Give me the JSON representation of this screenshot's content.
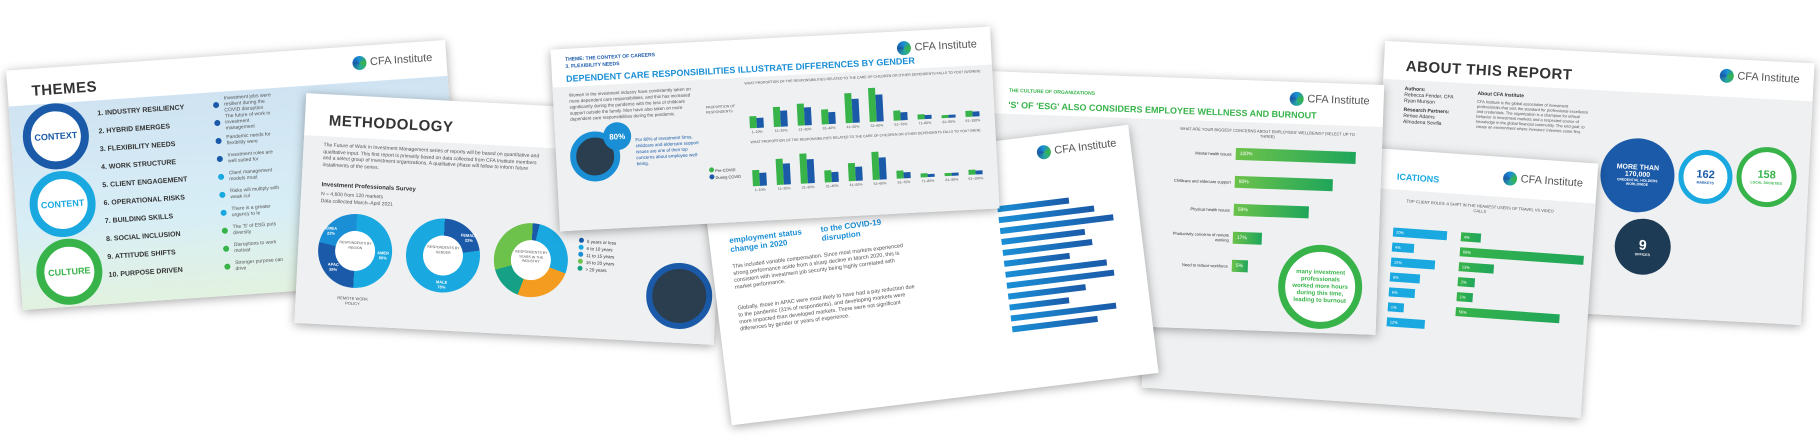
{
  "brand": {
    "logo_text": "CFA Institute",
    "colors": {
      "blue": "#1a5aa8",
      "cyan": "#19a8e0",
      "green": "#37b34a"
    }
  },
  "themes_page": {
    "title": "THEMES",
    "pillars": [
      "CONTEXT",
      "CONTENT",
      "CULTURE"
    ],
    "items": [
      {
        "label": "1. INDUSTRY RESILIENCY",
        "desc": "Investment jobs were resilient during the COVID disruption"
      },
      {
        "label": "2. HYBRID EMERGES",
        "desc": "The future of work in investment management"
      },
      {
        "label": "3. FLEXIBILITY NEEDS",
        "desc": "Pandemic needs for flexibility were"
      },
      {
        "label": "4. WORK STRUCTURE",
        "desc": "Investment roles are well suited for"
      },
      {
        "label": "5. CLIENT ENGAGEMENT",
        "desc": "Client management models must"
      },
      {
        "label": "6. OPERATIONAL RISKS",
        "desc": "Risks will multiply with weak cul"
      },
      {
        "label": "7. BUILDING SKILLS",
        "desc": "There is a greater urgency to le"
      },
      {
        "label": "8. SOCIAL INCLUSION",
        "desc": "The 'S' of ESG puts diversity"
      },
      {
        "label": "9. ATTITUDE SHIFTS",
        "desc": "Disruptions to work motivat"
      },
      {
        "label": "10. PURPOSE DRIVEN",
        "desc": "Stronger purpose can drive"
      }
    ]
  },
  "methodology_page": {
    "title": "METHODOLOGY",
    "intro": "The Future of Work in Investment Management series of reports will be based on quantitative and qualitative input. This first report is primarily based on data collected from CFA Institute members and a select group of investment organizations. A qualitative phase will follow to inform future installments of the series.",
    "survey_title": "Investment Professionals Survey",
    "survey_n": "N = 4,600 from 120 markets",
    "survey_dates": "Data collected March–April 2021",
    "donuts": [
      "RESPONDENTS BY REGION",
      "RESPONDENTS BY GENDER",
      "RESPONDENTS BY YEARS IN THE INDUSTRY"
    ],
    "region": [
      "EMEA 22%",
      "AMER 50%",
      "APAC 28%"
    ],
    "gender": [
      "FEMALE 22%",
      "MALE 78%"
    ],
    "legend": [
      "5 years or less",
      "6 to 10 years",
      "11 to 15 years",
      "16 to 20 years",
      "> 20 years"
    ],
    "footer": "REMOTE WORK POLICY"
  },
  "gender_page": {
    "kicker": "THEME: THE CONTEXT OF CAREERS",
    "subkicker": "3. FLEXIBILITY NEEDS",
    "title": "DEPENDENT CARE RESPONSIBILITIES ILLUSTRATE DIFFERENCES BY GENDER",
    "body": "Women in the investment industry have consistently taken on more dependent care responsibilities, and this has increased significantly during the pandemic with the loss of childcare support outside the family. Men have also taken on more dependent care responsibilities during the pandemic.",
    "stat": "80%",
    "stat_text": "For 80% of investment firms, childcare and eldercare support issues are one of their top concerns about employee well-being.",
    "chart1_title": "WHAT PROPORTION OF THE RESPONSIBILITIES RELATED TO THE CARE OF CHILDREN OR OTHER DEPENDENTS FALLS TO YOU? (WOMEN)",
    "chart2_title": "WHAT PROPORTION OF THE RESPONSIBILITIES RELATED TO THE CARE OF CHILDREN OR OTHER DEPENDENTS FALLS TO YOU? (MEN)",
    "ylabel": "PROPORTION OF RESPONDENTS",
    "legend": [
      "Pre-COVID",
      "During COVID"
    ],
    "categories": [
      "1–10%",
      "11–20%",
      "21–30%",
      "31–40%",
      "41–50%",
      "51–60%",
      "61–70%",
      "71–80%",
      "81–90%",
      "91–100%"
    ]
  },
  "employment_page": {
    "headings": [
      "employment status change in 2020",
      "to the COVID-19 disruption"
    ],
    "body1": "This included variable compensation. Since most markets experienced strong performance aside from a sharp decline in March 2020, this is consistent with investment job security being highly correlated with market performance.",
    "body2": "Globally, those in APAC were most likely to have had a pay reduction due to the pandemic (31% of respondents), and developing markets were more impacted than developed markets. There were not significant differences by gender or years of experience."
  },
  "wellness_page": {
    "kicker": "THE CULTURE OF ORGANIZATIONS",
    "title": "'S' OF 'ESG' ALSO CONSIDERS EMPLOYEE WELLNESS AND BURNOUT",
    "chart_title": "WHAT ARE YOUR BIGGEST CONCERNS ABOUT EMPLOYEES' WELLBEING? (SELECT UP TO THREE)",
    "bars": [
      {
        "label": "Mental health issues",
        "value": 100,
        "text": "100%"
      },
      {
        "label": "Childcare and eldercare support",
        "value": 80,
        "text": "80%"
      },
      {
        "label": "Physical health issues",
        "value": 59,
        "text": "59%"
      },
      {
        "label": "Productivity concerns of remote working",
        "value": 17,
        "text": "17%"
      },
      {
        "label": "Need to reduce workforce",
        "value": 5,
        "text": "5%"
      }
    ],
    "callout": "many investment professionals worked more hours during this time, leading to burnout"
  },
  "implications_page": {
    "title": "ICATIONS",
    "chart_title": "TOP CLIENT ROLES: A SHIFT IN THE HEAVIEST USERS OF TRAVEL VS VIDEO CALLS",
    "left_vals": [
      "20%",
      "4%",
      "15%",
      "8%",
      "6%",
      "1%",
      "12%"
    ],
    "right_vals": [
      "4%",
      "69%",
      "13%",
      "2%",
      "1%",
      "56%"
    ]
  },
  "about_page": {
    "title": "ABOUT THIS REPORT",
    "authors_label": "Authors:",
    "authors": [
      "Rebecca Fender, CFA",
      "Ryan Munson"
    ],
    "partners_label": "Research Partners:",
    "partners": [
      "Renee Adams",
      "Almudena Sevilla"
    ],
    "about_title": "About CFA Institute",
    "about_text": "CFA Institute is the global association of investment professionals that sets the standard for professional excellence and credentials. The organization is a champion for ethical behavior in investment markets and a respected source of knowledge in the global financial community. The end goal: to create an environment where investors' interests come first.",
    "stats": [
      {
        "value": "MORE THAN 170,000",
        "label": "CREDENTIAL HOLDERS WORLDWIDE"
      },
      {
        "value": "162",
        "label": "MARKETS"
      },
      {
        "value": "158",
        "label": "LOCAL SOCIETIES"
      },
      {
        "value": "9",
        "label": "OFFICES"
      }
    ]
  }
}
